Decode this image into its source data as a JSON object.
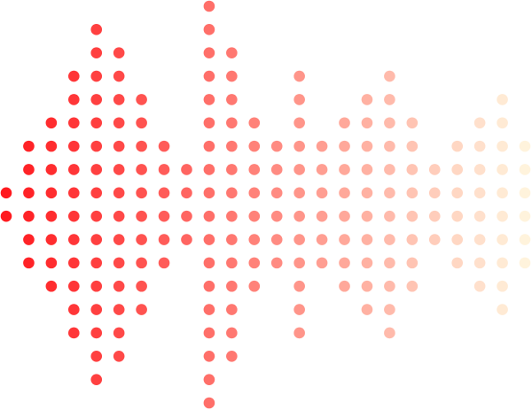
{
  "graphic": {
    "type": "dot-matrix-sound-wave",
    "column_dot_counts": [
      2,
      6,
      8,
      12,
      16,
      14,
      10,
      6,
      4,
      18,
      14,
      8,
      6,
      12,
      6,
      8,
      10,
      12,
      8,
      4,
      6,
      8,
      10,
      6
    ],
    "max_dots": 18,
    "colors": {
      "start": "#ff1a1f",
      "end": "#fff3dc",
      "background": "#ffffff"
    }
  }
}
